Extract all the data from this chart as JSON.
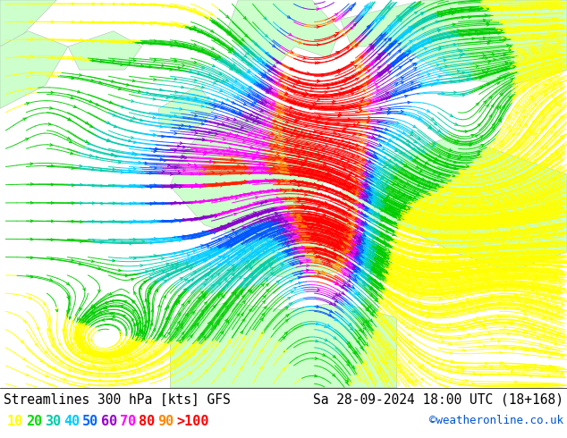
{
  "title_left": "Streamlines 300 hPa [kts] GFS",
  "title_right": "Sa 28-09-2024 18:00 UTC (18+168)",
  "credit": "©weatheronline.co.uk",
  "legend_values": [
    "10",
    "20",
    "30",
    "40",
    "50",
    "60",
    "70",
    "80",
    "90",
    ">100"
  ],
  "legend_colors": [
    "#ffff00",
    "#00dd00",
    "#00ccaa",
    "#00ccff",
    "#0066ff",
    "#9900cc",
    "#ff00ff",
    "#ff0000",
    "#ff8800",
    "#ff0000"
  ],
  "bg_color": "#ffffff",
  "ocean_color": "#e8e8e8",
  "land_color": "#ccffcc",
  "title_fontsize": 10.5,
  "credit_fontsize": 9,
  "legend_fontsize": 11,
  "figsize": [
    6.34,
    4.9
  ],
  "dpi": 100
}
